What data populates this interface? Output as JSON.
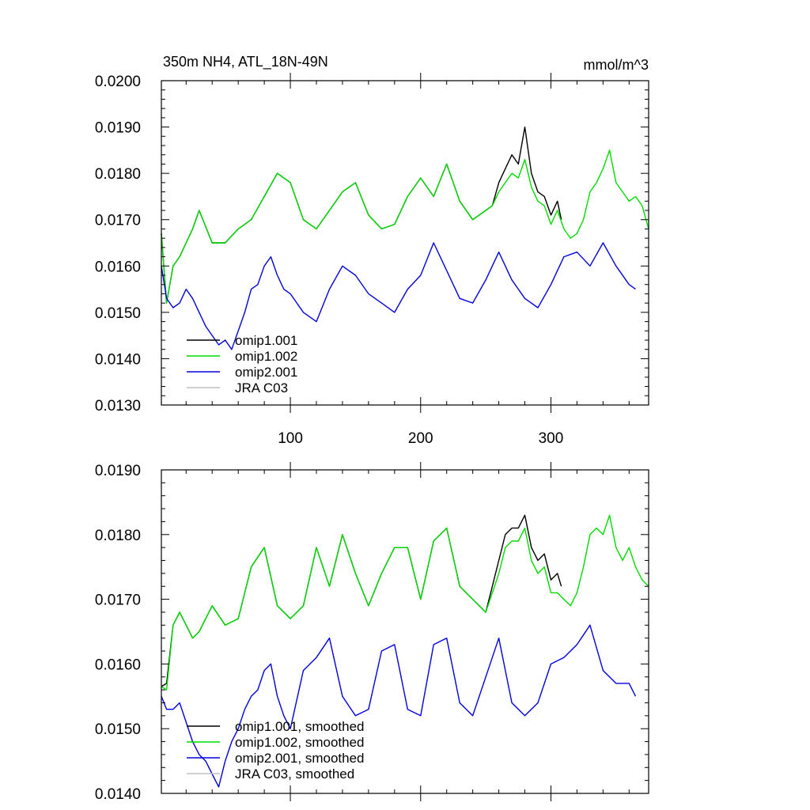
{
  "chart_data": [
    {
      "type": "line",
      "title": "350m NH4, ATL_18N-49N",
      "units": "mmol/m^3",
      "xlim": [
        1,
        375
      ],
      "ylim": [
        0.013,
        0.02
      ],
      "xticks": [
        100,
        200,
        300
      ],
      "xtick_labels": [
        "100",
        "200",
        "300"
      ],
      "yticks": [
        0.013,
        0.014,
        0.015,
        0.016,
        0.017,
        0.018,
        0.019,
        0.02
      ],
      "ytick_labels": [
        "0.0130",
        "0.0140",
        "0.0150",
        "0.0160",
        "0.0170",
        "0.0180",
        "0.0190",
        "0.0200"
      ],
      "grid": false,
      "legend_position": "bottom-left",
      "series": [
        {
          "name": "omip1.001",
          "color": "#000000",
          "x": [
            1,
            5,
            10,
            15,
            20,
            25,
            30,
            40,
            50,
            60,
            70,
            80,
            90,
            100,
            110,
            120,
            130,
            140,
            150,
            160,
            170,
            180,
            190,
            200,
            210,
            220,
            230,
            240,
            250,
            255,
            260,
            265,
            270,
            275,
            280,
            285,
            290,
            295,
            300,
            305,
            308
          ],
          "y": [
            0.0167,
            0.0152,
            0.016,
            0.0162,
            0.0165,
            0.0168,
            0.0172,
            0.0165,
            0.0165,
            0.0168,
            0.017,
            0.0175,
            0.018,
            0.0178,
            0.017,
            0.0168,
            0.0172,
            0.0176,
            0.0178,
            0.0171,
            0.0168,
            0.0169,
            0.0175,
            0.0179,
            0.0175,
            0.0182,
            0.0174,
            0.017,
            0.0172,
            0.0173,
            0.0178,
            0.0181,
            0.0184,
            0.0182,
            0.019,
            0.018,
            0.0176,
            0.0175,
            0.0171,
            0.0174,
            0.017
          ]
        },
        {
          "name": "omip1.002",
          "color": "#00dd00",
          "x": [
            1,
            5,
            10,
            15,
            20,
            25,
            30,
            40,
            50,
            60,
            70,
            80,
            90,
            100,
            110,
            120,
            130,
            140,
            150,
            160,
            170,
            180,
            190,
            200,
            210,
            220,
            230,
            240,
            250,
            255,
            260,
            265,
            270,
            275,
            280,
            285,
            290,
            295,
            300,
            305,
            310,
            315,
            320,
            325,
            330,
            335,
            340,
            345,
            350,
            355,
            360,
            365,
            370,
            375
          ],
          "y": [
            0.0167,
            0.0152,
            0.016,
            0.0162,
            0.0165,
            0.0168,
            0.0172,
            0.0165,
            0.0165,
            0.0168,
            0.017,
            0.0175,
            0.018,
            0.0178,
            0.017,
            0.0168,
            0.0172,
            0.0176,
            0.0178,
            0.0171,
            0.0168,
            0.0169,
            0.0175,
            0.0179,
            0.0175,
            0.0182,
            0.0174,
            0.017,
            0.0172,
            0.0173,
            0.0176,
            0.0178,
            0.018,
            0.0179,
            0.0183,
            0.0177,
            0.0174,
            0.0173,
            0.0169,
            0.0172,
            0.0168,
            0.0166,
            0.0167,
            0.017,
            0.0176,
            0.0178,
            0.0181,
            0.0185,
            0.0178,
            0.0176,
            0.0174,
            0.0175,
            0.0173,
            0.0168
          ]
        },
        {
          "name": "omip2.001",
          "color": "#0000dd",
          "x": [
            1,
            5,
            10,
            15,
            20,
            25,
            30,
            35,
            40,
            45,
            50,
            55,
            60,
            65,
            70,
            75,
            80,
            85,
            90,
            95,
            100,
            110,
            120,
            130,
            140,
            150,
            160,
            170,
            180,
            190,
            200,
            210,
            220,
            230,
            240,
            250,
            260,
            270,
            280,
            290,
            300,
            310,
            320,
            330,
            340,
            350,
            360,
            365
          ],
          "y": [
            0.016,
            0.0153,
            0.0151,
            0.0152,
            0.0155,
            0.0153,
            0.015,
            0.0147,
            0.0145,
            0.0143,
            0.0144,
            0.0142,
            0.0146,
            0.015,
            0.0155,
            0.0156,
            0.016,
            0.0162,
            0.0158,
            0.0155,
            0.0154,
            0.015,
            0.0148,
            0.0155,
            0.016,
            0.0158,
            0.0154,
            0.0152,
            0.015,
            0.0155,
            0.0158,
            0.0165,
            0.0159,
            0.0153,
            0.0152,
            0.0157,
            0.0163,
            0.0157,
            0.0153,
            0.0151,
            0.0156,
            0.0162,
            0.0163,
            0.016,
            0.0165,
            0.016,
            0.0156,
            0.0155
          ]
        },
        {
          "name": "JRA C03",
          "color": "#c0c0c0",
          "x": [],
          "y": []
        }
      ]
    },
    {
      "type": "line",
      "title": "",
      "xlim": [
        1,
        375
      ],
      "ylim": [
        0.014,
        0.019
      ],
      "xticks": [
        100,
        200,
        300
      ],
      "xtick_labels": [
        "",
        "",
        ""
      ],
      "yticks": [
        0.014,
        0.015,
        0.016,
        0.017,
        0.018,
        0.019
      ],
      "ytick_labels": [
        "0.0140",
        "0.0150",
        "0.0160",
        "0.0170",
        "0.0180",
        "0.0190"
      ],
      "grid": false,
      "legend_position": "bottom-left",
      "series": [
        {
          "name": "omip1.001, smoothed",
          "color": "#000000",
          "x": [
            1,
            5,
            10,
            15,
            20,
            25,
            30,
            40,
            50,
            60,
            70,
            80,
            90,
            100,
            110,
            120,
            130,
            140,
            150,
            160,
            170,
            180,
            190,
            200,
            210,
            220,
            230,
            240,
            250,
            255,
            260,
            265,
            270,
            275,
            280,
            285,
            290,
            295,
            300,
            305,
            308
          ],
          "y": [
            0.01565,
            0.0157,
            0.0166,
            0.0168,
            0.0166,
            0.0164,
            0.0165,
            0.0169,
            0.0166,
            0.0167,
            0.0175,
            0.0178,
            0.0169,
            0.0167,
            0.0169,
            0.0178,
            0.0172,
            0.018,
            0.0174,
            0.0169,
            0.0174,
            0.0178,
            0.0178,
            0.017,
            0.0179,
            0.0181,
            0.0172,
            0.017,
            0.0168,
            0.0172,
            0.0176,
            0.018,
            0.0181,
            0.0181,
            0.0183,
            0.0178,
            0.0176,
            0.0177,
            0.0173,
            0.0174,
            0.0172
          ]
        },
        {
          "name": "omip1.002, smoothed",
          "color": "#00dd00",
          "x": [
            1,
            5,
            10,
            15,
            20,
            25,
            30,
            40,
            50,
            60,
            70,
            80,
            90,
            100,
            110,
            120,
            130,
            140,
            150,
            160,
            170,
            180,
            190,
            200,
            210,
            220,
            230,
            240,
            250,
            255,
            260,
            265,
            270,
            275,
            280,
            285,
            290,
            295,
            300,
            305,
            310,
            315,
            320,
            325,
            330,
            335,
            340,
            345,
            350,
            355,
            360,
            365,
            370,
            375
          ],
          "y": [
            0.01565,
            0.0156,
            0.0166,
            0.0168,
            0.0166,
            0.0164,
            0.0165,
            0.0169,
            0.0166,
            0.0167,
            0.0175,
            0.0178,
            0.0169,
            0.0167,
            0.0169,
            0.0178,
            0.0172,
            0.018,
            0.0174,
            0.0169,
            0.0174,
            0.0178,
            0.0178,
            0.017,
            0.0179,
            0.0181,
            0.0172,
            0.017,
            0.0168,
            0.0171,
            0.0174,
            0.0178,
            0.0179,
            0.0179,
            0.0181,
            0.0176,
            0.0174,
            0.0175,
            0.0171,
            0.0171,
            0.017,
            0.0169,
            0.0171,
            0.0175,
            0.018,
            0.0181,
            0.018,
            0.0183,
            0.0178,
            0.0176,
            0.0178,
            0.0175,
            0.0173,
            0.0172
          ]
        },
        {
          "name": "omip2.001, smoothed",
          "color": "#0000dd",
          "x": [
            1,
            5,
            10,
            15,
            20,
            25,
            30,
            35,
            40,
            45,
            50,
            55,
            60,
            65,
            70,
            75,
            80,
            85,
            90,
            95,
            100,
            110,
            120,
            130,
            140,
            150,
            160,
            170,
            180,
            190,
            200,
            210,
            220,
            230,
            240,
            250,
            260,
            270,
            280,
            290,
            300,
            310,
            320,
            330,
            340,
            350,
            360,
            365
          ],
          "y": [
            0.0155,
            0.0153,
            0.0153,
            0.0154,
            0.0151,
            0.0148,
            0.0146,
            0.0145,
            0.0143,
            0.0141,
            0.0145,
            0.0148,
            0.015,
            0.0153,
            0.0155,
            0.0156,
            0.0159,
            0.016,
            0.0155,
            0.0152,
            0.015,
            0.0159,
            0.0161,
            0.0164,
            0.0155,
            0.0152,
            0.0153,
            0.0162,
            0.0163,
            0.0153,
            0.0152,
            0.0163,
            0.0164,
            0.0154,
            0.0152,
            0.0158,
            0.0164,
            0.0154,
            0.0152,
            0.0154,
            0.016,
            0.0161,
            0.0163,
            0.0166,
            0.0159,
            0.0157,
            0.0157,
            0.0155
          ]
        },
        {
          "name": "JRA C03, smoothed",
          "color": "#c0c0c0",
          "x": [],
          "y": []
        }
      ]
    }
  ]
}
